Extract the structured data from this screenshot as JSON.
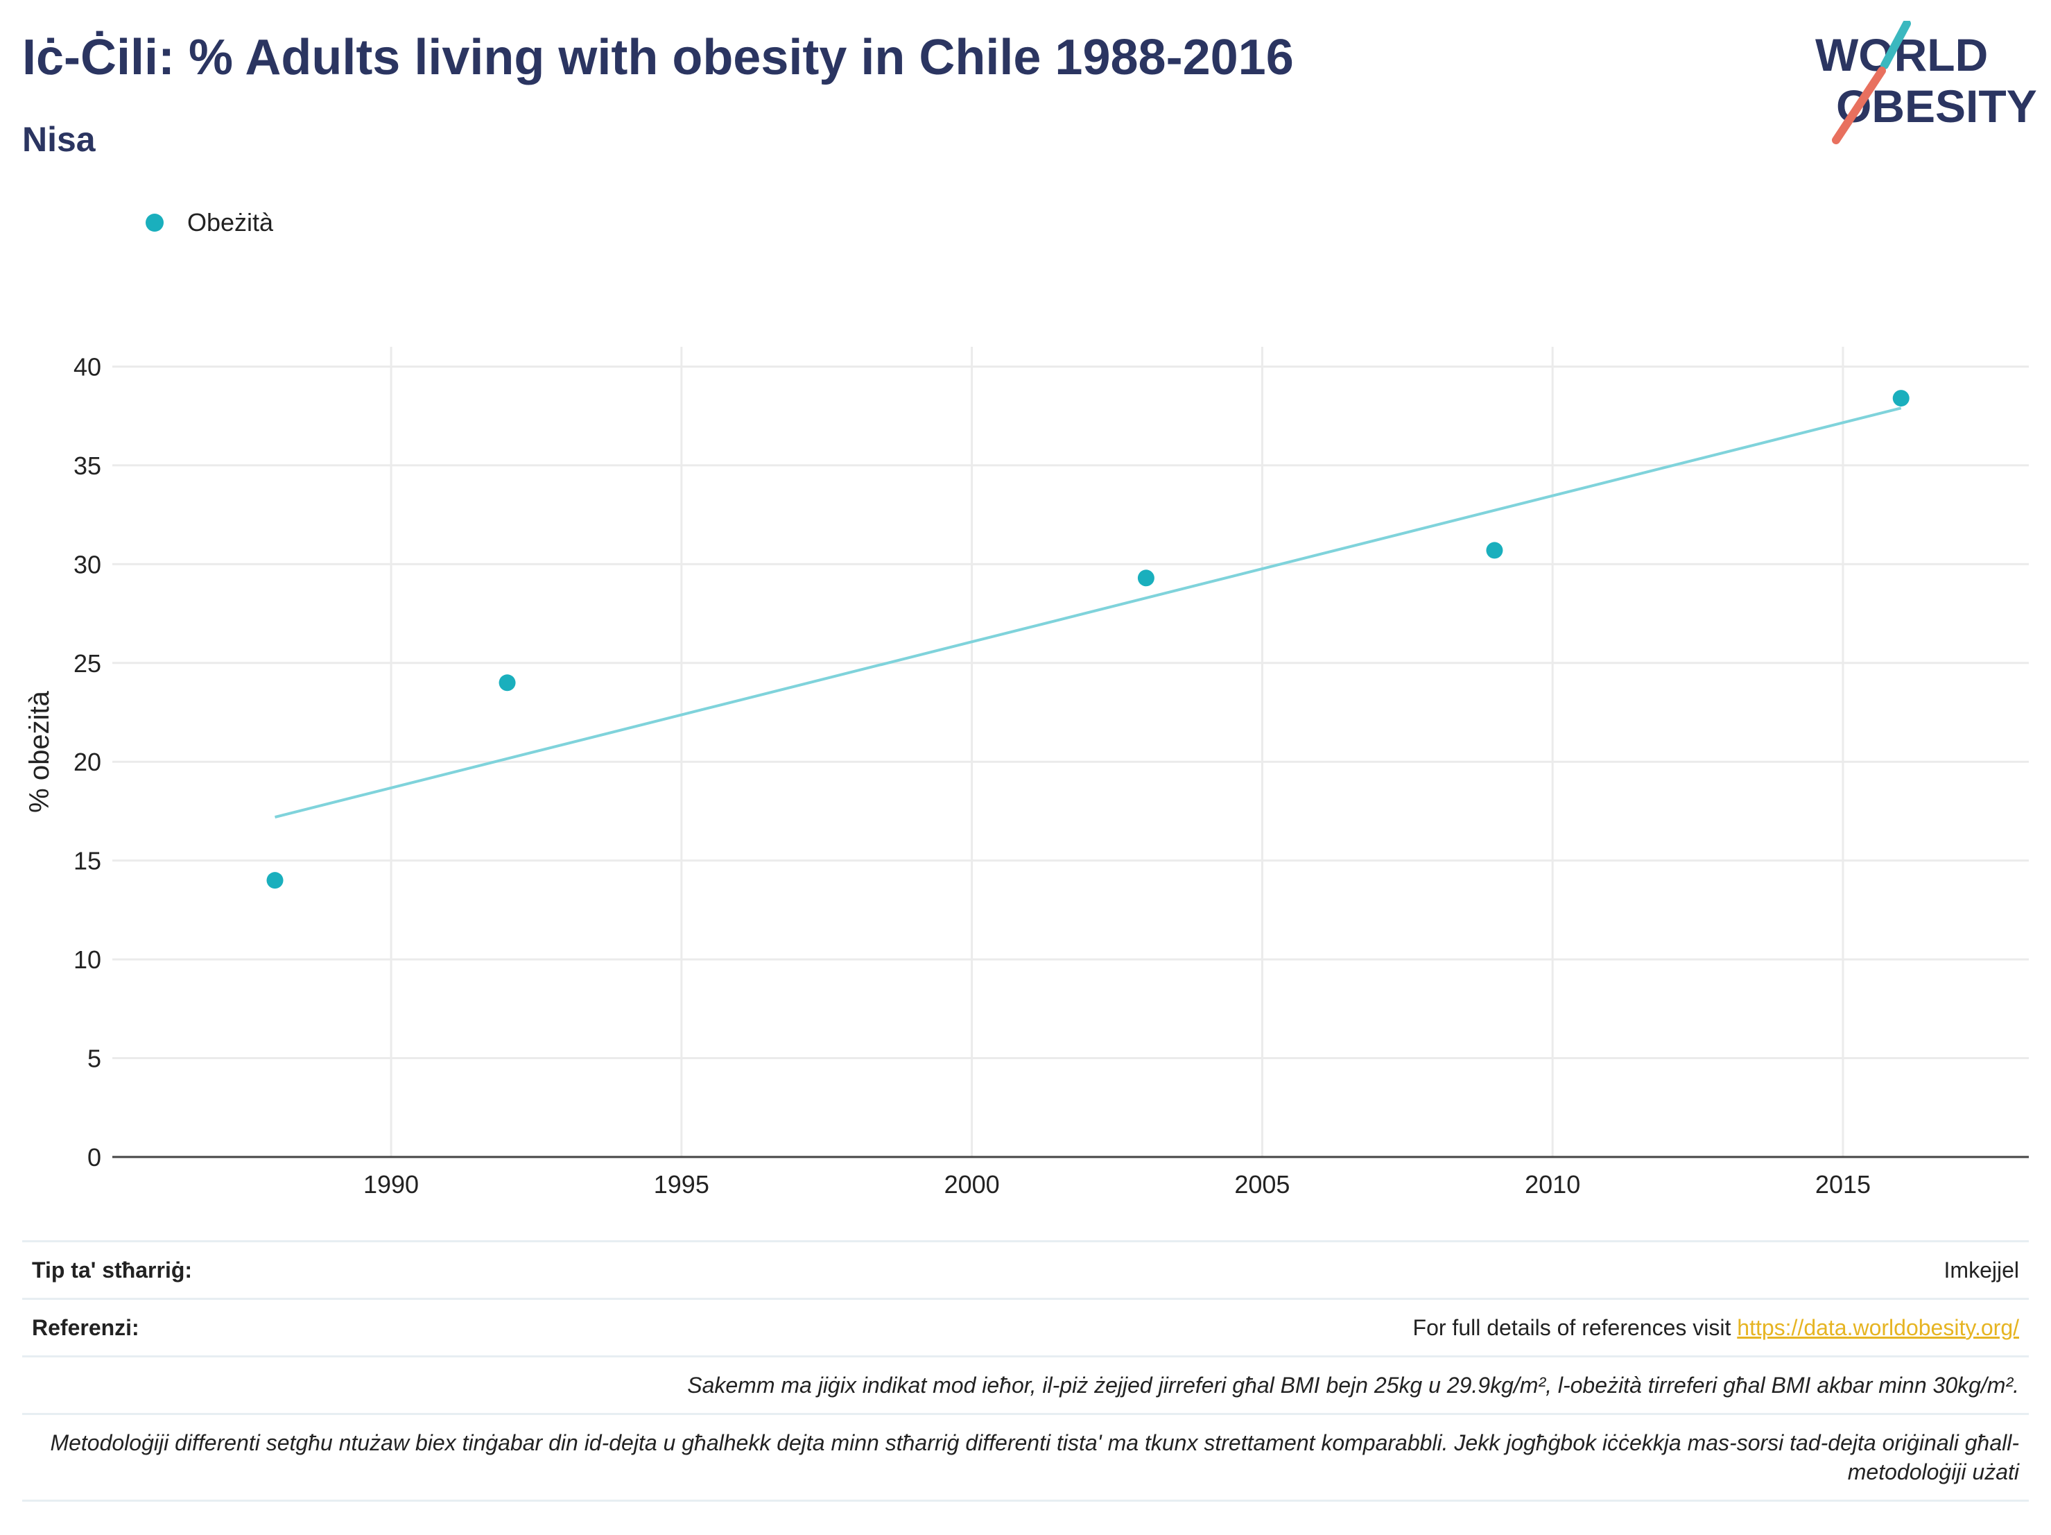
{
  "header": {
    "title": "Iċ-Ċili: % Adults living with obesity in Chile 1988-2016",
    "subtitle": "Nisa"
  },
  "logo": {
    "line1": "WORLD",
    "line2": "OBESITY"
  },
  "colors": {
    "series": "#1aafbd",
    "trend": "#7fd3db",
    "title": "#2b3561",
    "link": "#e6b422"
  },
  "chart_data": {
    "type": "scatter",
    "title": "Iċ-Ċili: % Adults living with obesity in Chile 1988-2016",
    "subtitle": "Nisa",
    "ylabel": "% obeżità",
    "xlabel": "",
    "xlim": [
      1985.2,
      2018.2
    ],
    "ylim": [
      0,
      41
    ],
    "xticks": [
      1990,
      1995,
      2000,
      2005,
      2010,
      2015
    ],
    "yticks": [
      0,
      5,
      10,
      15,
      20,
      25,
      30,
      35,
      40
    ],
    "grid": true,
    "legend": "top-left",
    "series": [
      {
        "name": "Obeżità",
        "x": [
          1988,
          1992,
          2003,
          2009,
          2016
        ],
        "y": [
          14.0,
          24.0,
          29.3,
          30.7,
          38.4
        ]
      }
    ],
    "trendline": {
      "x": [
        1988,
        2016
      ],
      "y": [
        17.2,
        37.9
      ]
    }
  },
  "footer": {
    "survey_type_label": "Tip ta' stħarriġ:",
    "survey_type_value": "Imkejjel",
    "references_label": "Referenzi:",
    "references_text": "For full details of references visit",
    "references_link": "https://data.worldobesity.org/",
    "note1": "Sakemm ma jiġix indikat mod ieħor, il-piż żejjed jirreferi għal BMI bejn 25kg u 29.9kg/m², l-obeżità tirreferi għal BMI akbar minn 30kg/m².",
    "note2": "Metodoloġiji differenti setgħu ntużaw biex tinġabar din id-dejta u għalhekk dejta minn stħarriġ differenti tista' ma tkunx strettament komparabbli. Jekk jogħġbok iċċekkja mas-sorsi tad-dejta oriġinali għall-metodoloġiji użati"
  }
}
